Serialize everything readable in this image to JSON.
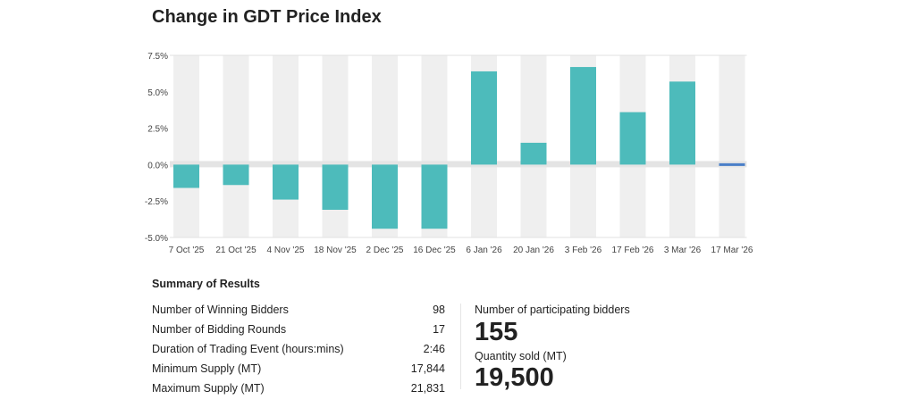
{
  "title": "Change in GDT Price Index",
  "chart_data": {
    "type": "bar",
    "title": "Change in GDT Price Index",
    "categories": [
      "7 Oct '25",
      "21 Oct '25",
      "4 Nov '25",
      "18 Nov '25",
      "2 Dec '25",
      "16 Dec '25",
      "6 Jan '26",
      "20 Jan '26",
      "3 Feb '26",
      "17 Feb '26",
      "3 Mar '26",
      "17 Mar '26"
    ],
    "values": [
      -1.6,
      -1.4,
      -2.4,
      -3.1,
      -4.4,
      -4.4,
      6.4,
      1.5,
      6.7,
      3.6,
      5.7,
      0.0
    ],
    "ylim": [
      -5.0,
      7.5
    ],
    "yticks": [
      "7.5%",
      "5.0%",
      "2.5%",
      "0.0%",
      "-2.5%",
      "-5.0%"
    ],
    "ytick_values": [
      7.5,
      5.0,
      2.5,
      0.0,
      -2.5,
      -5.0
    ],
    "xlabel": "",
    "ylabel": "",
    "grid": false,
    "colors": {
      "bar": "#4dbbbb",
      "pending": "#4a7fc8",
      "band": "#efefef",
      "zero_band": "#e4e4e4"
    }
  },
  "summary": {
    "title": "Summary of Results",
    "rows": [
      {
        "label": "Number of Winning Bidders",
        "value": "98"
      },
      {
        "label": "Number of Bidding Rounds",
        "value": "17"
      },
      {
        "label": "Duration of Trading Event (hours:mins)",
        "value": "2:46"
      },
      {
        "label": "Minimum Supply (MT)",
        "value": "17,844"
      },
      {
        "label": "Maximum Supply (MT)",
        "value": "21,831"
      }
    ],
    "participating_label": "Number of participating bidders",
    "participating_value": "155",
    "quantity_label": "Quantity sold (MT)",
    "quantity_value": "19,500"
  }
}
